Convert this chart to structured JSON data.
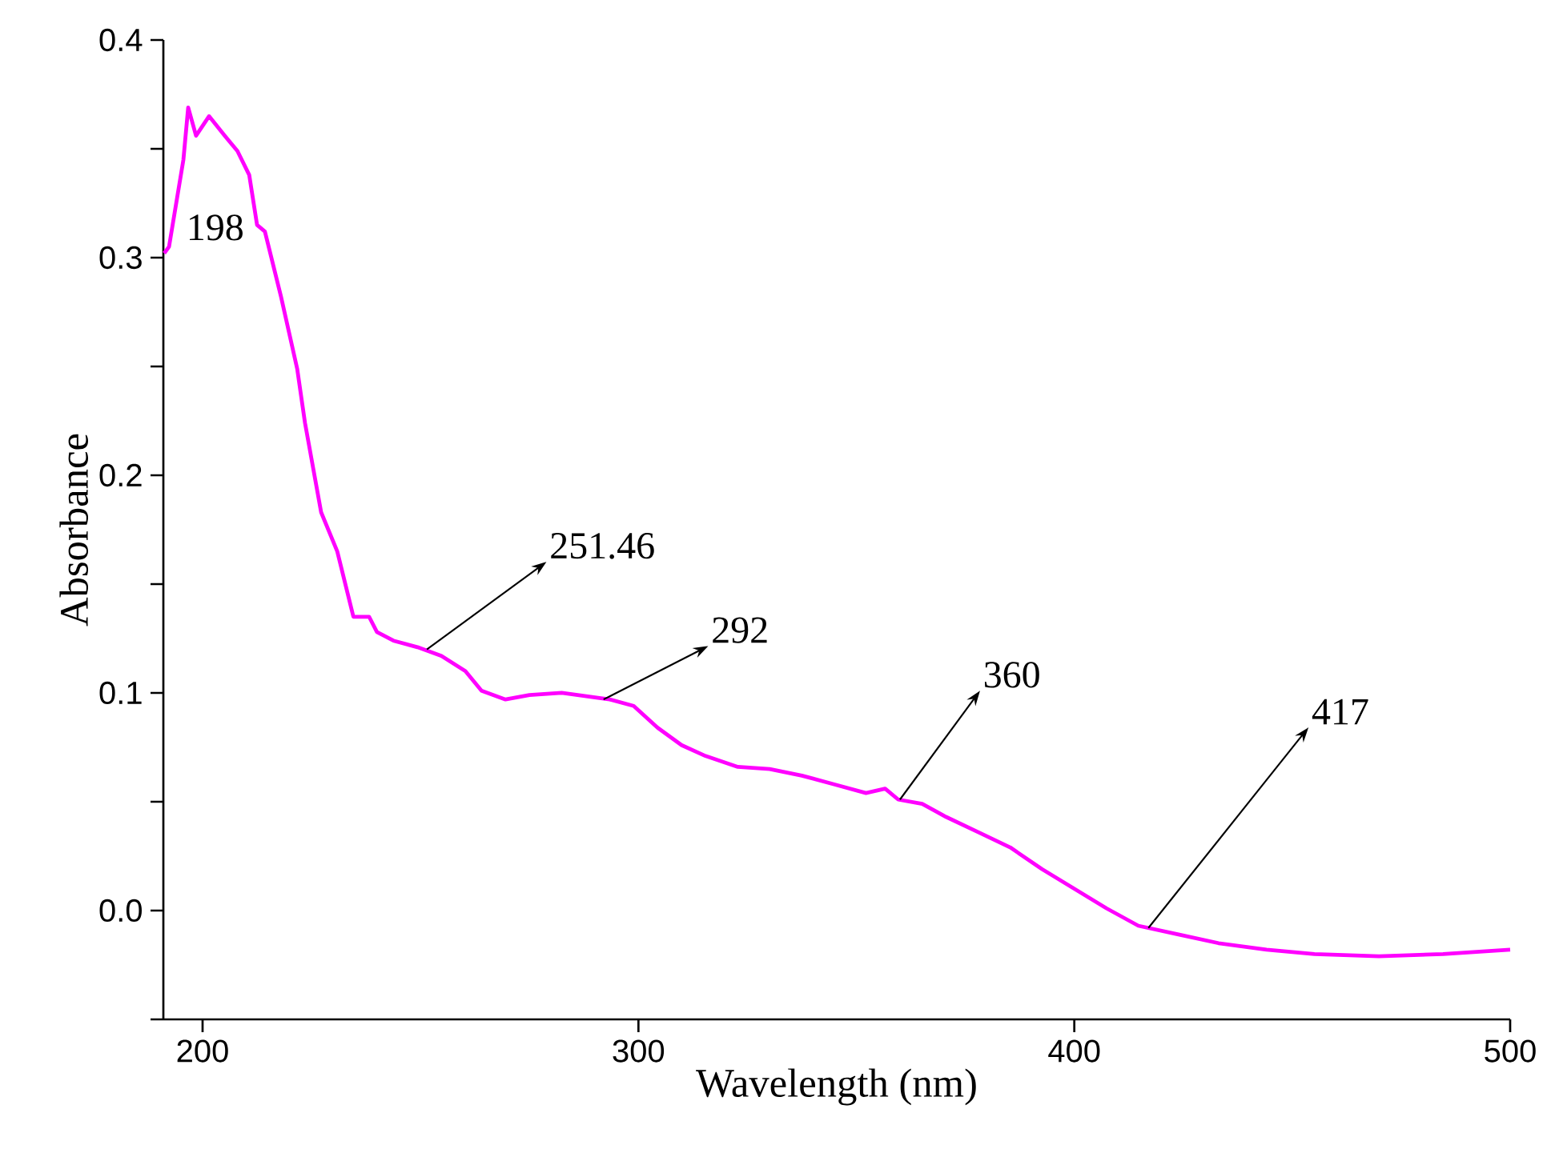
{
  "chart_data": {
    "type": "line",
    "xlabel": "Wavelength (nm)",
    "ylabel": "Absorbance",
    "xlim": [
      191,
      500
    ],
    "ylim": [
      -0.05,
      0.4
    ],
    "xticks": [
      200,
      300,
      400,
      500
    ],
    "yticks": [
      {
        "value": -0.05,
        "label": null
      },
      {
        "value": 0,
        "label": "0.0"
      },
      {
        "value": 0.05,
        "label": null
      },
      0.1,
      {
        "value": 0.15,
        "label": null
      },
      0.2,
      {
        "value": 0.25,
        "label": null
      },
      0.3,
      {
        "value": 0.35,
        "label": null
      },
      0.4
    ],
    "grid": false,
    "marker": "none",
    "line_style": "solid",
    "annotations": [
      {
        "text": "198",
        "x": 198,
        "y": 0.356
      },
      {
        "text": "251.46",
        "x": 251.46,
        "y": 0.12
      },
      {
        "text": "292",
        "x": 292,
        "y": 0.097
      },
      {
        "text": "360",
        "x": 360,
        "y": 0.051
      },
      {
        "text": "417",
        "x": 417,
        "y": -0.008
      }
    ],
    "series": [
      {
        "color": "#ff00ff",
        "x": [
          191.2,
          192.3,
          195.6,
          196.7,
          198.5,
          201.5,
          205.1,
          208,
          210.7,
          212.5,
          214.3,
          218,
          221.7,
          223.5,
          227.2,
          230.9,
          234.6,
          238.2,
          240,
          243.8,
          249.3,
          254.8,
          260.3,
          264,
          269.5,
          275,
          282.4,
          289.7,
          293.4,
          298.9,
          304.4,
          309.9,
          315.4,
          322.8,
          330.1,
          337.5,
          344.9,
          352.2,
          356.6,
          359.6,
          365.1,
          370.6,
          378,
          385.3,
          392.6,
          400,
          407.4,
          414.7,
          423.9,
          433.1,
          444.1,
          455.1,
          469.9,
          484.6,
          500
        ],
        "values": [
          0.302,
          0.305,
          0.345,
          0.369,
          0.356,
          0.365,
          0.356,
          0.349,
          0.338,
          0.315,
          0.312,
          0.282,
          0.249,
          0.224,
          0.183,
          0.165,
          0.135,
          0.135,
          0.128,
          0.124,
          0.121,
          0.117,
          0.11,
          0.101,
          0.097,
          0.099,
          0.1,
          0.098,
          0.097,
          0.094,
          0.084,
          0.076,
          0.071,
          0.066,
          0.065,
          0.062,
          0.058,
          0.054,
          0.056,
          0.051,
          0.049,
          0.043,
          0.036,
          0.029,
          0.019,
          0.01,
          0.001,
          -0.007,
          -0.011,
          -0.015,
          -0.018,
          -0.02,
          -0.021,
          -0.02,
          -0.018
        ]
      }
    ]
  }
}
